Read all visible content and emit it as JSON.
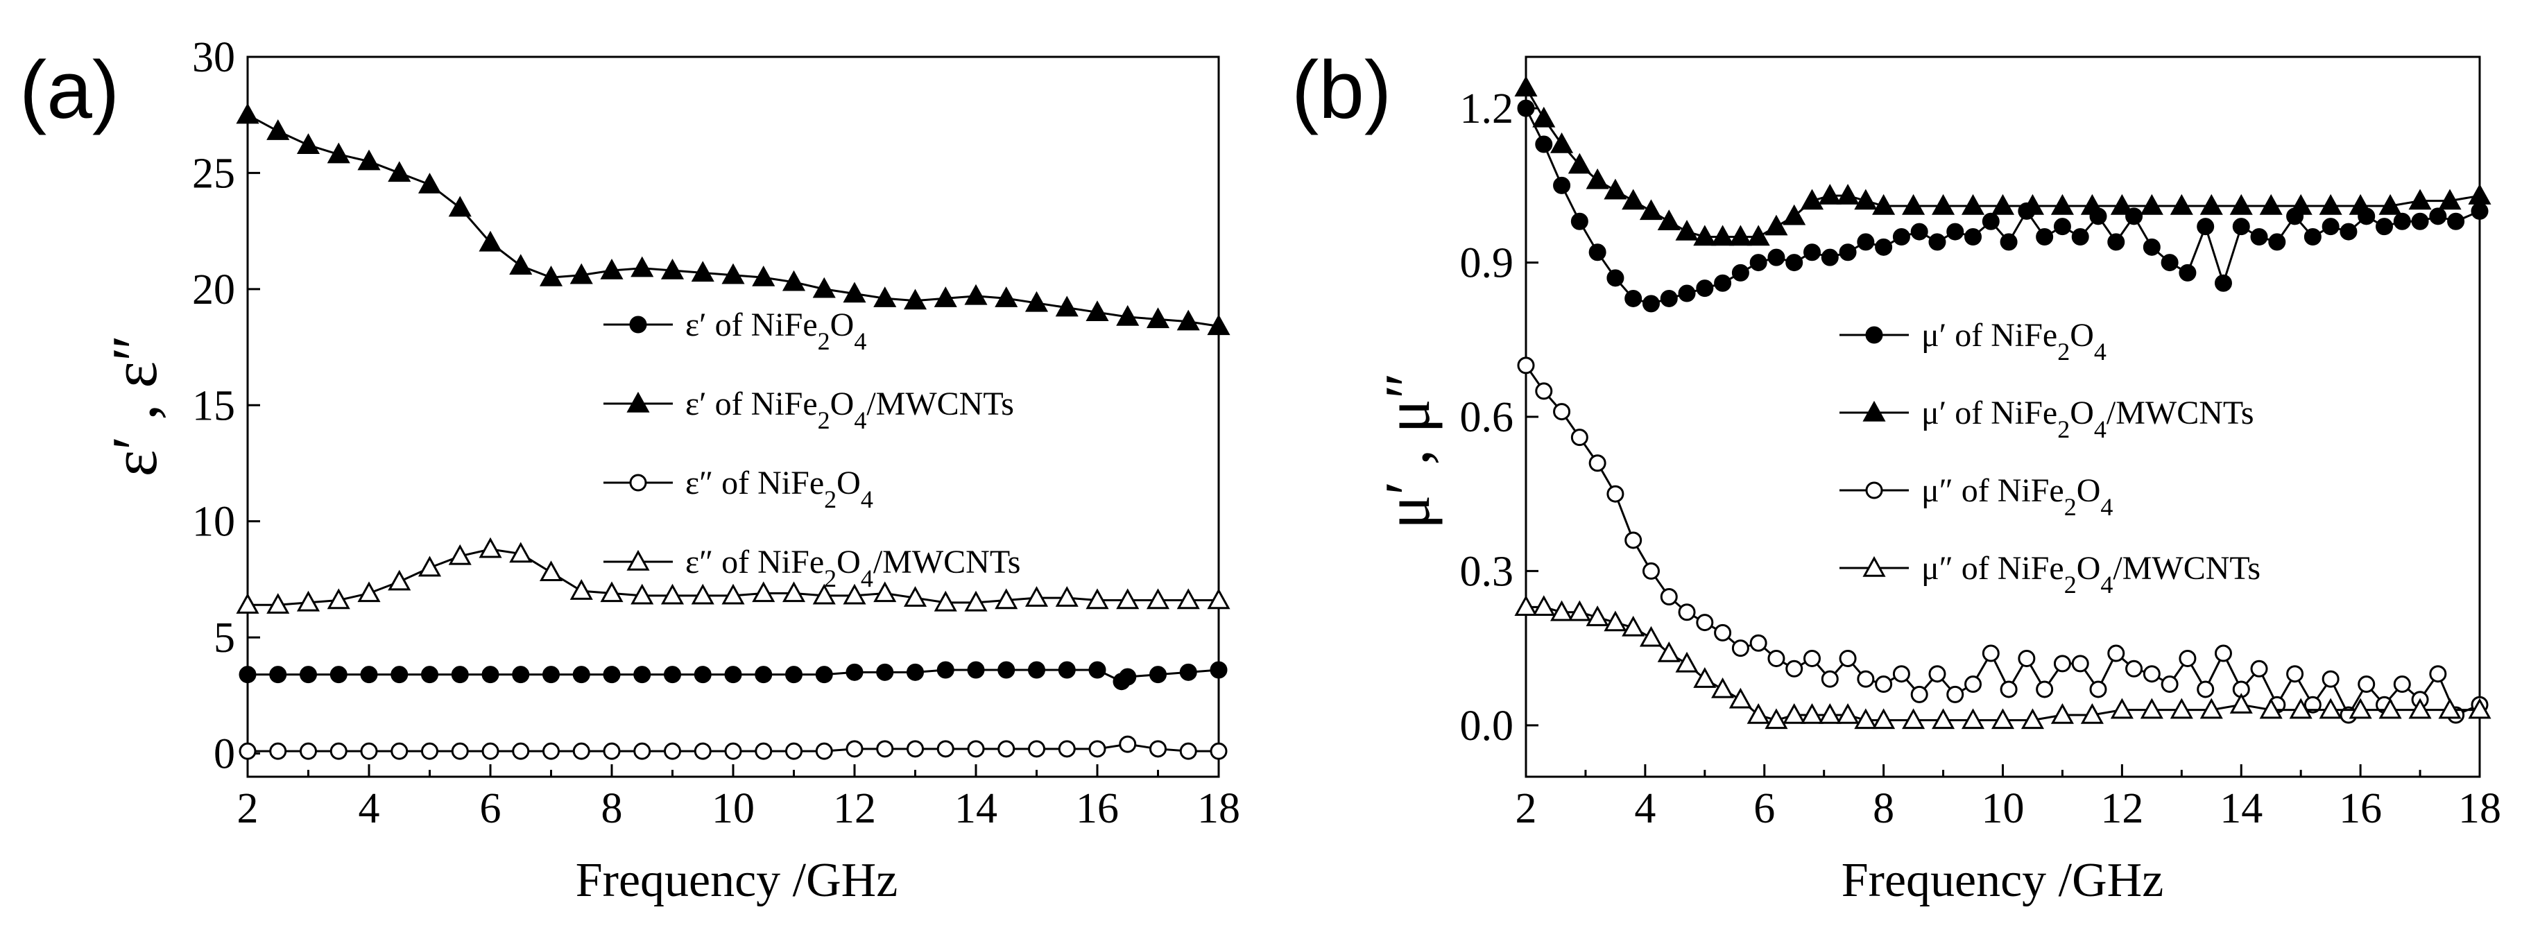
{
  "chart_data": [
    {
      "panel": "(a)",
      "type": "line",
      "xlabel": "Frequency /GHz",
      "ylabel": "ε′ , ε″",
      "xlim": [
        2,
        18
      ],
      "ylim": [
        -1,
        30
      ],
      "xticks": [
        2,
        4,
        6,
        8,
        10,
        12,
        14,
        16,
        18
      ],
      "yticks": [
        0,
        5,
        10,
        15,
        20,
        25,
        30
      ],
      "legend_position": "center",
      "series": [
        {
          "name": "ε′ of NiFe2O4",
          "legend_prefix": "ε′ of NiFe",
          "legend_sub1": "2",
          "legend_mid": "O",
          "legend_sub2": "4",
          "legend_suffix": "",
          "marker": "circle-filled",
          "x": [
            2,
            2.5,
            3,
            3.5,
            4,
            4.5,
            5,
            5.5,
            6,
            6.5,
            7,
            7.5,
            8,
            8.5,
            9,
            9.5,
            10,
            10.5,
            11,
            11.5,
            12,
            12.5,
            13,
            13.5,
            14,
            14.5,
            15,
            15.5,
            16,
            16.4,
            16.5,
            17,
            17.5,
            18
          ],
          "y": [
            3.4,
            3.4,
            3.4,
            3.4,
            3.4,
            3.4,
            3.4,
            3.4,
            3.4,
            3.4,
            3.4,
            3.4,
            3.4,
            3.4,
            3.4,
            3.4,
            3.4,
            3.4,
            3.4,
            3.4,
            3.5,
            3.5,
            3.5,
            3.6,
            3.6,
            3.6,
            3.6,
            3.6,
            3.6,
            3.1,
            3.3,
            3.4,
            3.5,
            3.6
          ]
        },
        {
          "name": "ε′ of NiFe2O4/MWCNTs",
          "legend_prefix": "ε′ of NiFe",
          "legend_sub1": "2",
          "legend_mid": "O",
          "legend_sub2": "4",
          "legend_suffix": "/MWCNTs",
          "marker": "triangle-filled",
          "x": [
            2,
            2.5,
            3,
            3.5,
            4,
            4.5,
            5,
            5.5,
            6,
            6.5,
            7,
            7.5,
            8,
            8.5,
            9,
            9.5,
            10,
            10.5,
            11,
            11.5,
            12,
            12.5,
            13,
            13.5,
            14,
            14.5,
            15,
            15.5,
            16,
            16.5,
            17,
            17.5,
            18
          ],
          "y": [
            27.5,
            26.8,
            26.2,
            25.8,
            25.5,
            25.0,
            24.5,
            23.5,
            22.0,
            21.0,
            20.5,
            20.6,
            20.8,
            20.9,
            20.8,
            20.7,
            20.6,
            20.5,
            20.3,
            20.0,
            19.8,
            19.6,
            19.5,
            19.6,
            19.7,
            19.6,
            19.4,
            19.2,
            19.0,
            18.8,
            18.7,
            18.6,
            18.4
          ]
        },
        {
          "name": "ε″ of NiFe2O4",
          "legend_prefix": "ε″ of NiFe",
          "legend_sub1": "2",
          "legend_mid": "O",
          "legend_sub2": "4",
          "legend_suffix": "",
          "marker": "circle-open",
          "x": [
            2,
            2.5,
            3,
            3.5,
            4,
            4.5,
            5,
            5.5,
            6,
            6.5,
            7,
            7.5,
            8,
            8.5,
            9,
            9.5,
            10,
            10.5,
            11,
            11.5,
            12,
            12.5,
            13,
            13.5,
            14,
            14.5,
            15,
            15.5,
            16,
            16.5,
            17,
            17.5,
            18
          ],
          "y": [
            0.1,
            0.1,
            0.1,
            0.1,
            0.1,
            0.1,
            0.1,
            0.1,
            0.1,
            0.1,
            0.1,
            0.1,
            0.1,
            0.1,
            0.1,
            0.1,
            0.1,
            0.1,
            0.1,
            0.1,
            0.2,
            0.2,
            0.2,
            0.2,
            0.2,
            0.2,
            0.2,
            0.2,
            0.2,
            0.4,
            0.2,
            0.1,
            0.1
          ]
        },
        {
          "name": "ε″ of NiFe2O4/MWCNTs",
          "legend_prefix": "ε″ of NiFe",
          "legend_sub1": "2",
          "legend_mid": "O",
          "legend_sub2": "4",
          "legend_suffix": "/MWCNTs",
          "marker": "triangle-open",
          "x": [
            2,
            2.5,
            3,
            3.5,
            4,
            4.5,
            5,
            5.5,
            6,
            6.5,
            7,
            7.5,
            8,
            8.5,
            9,
            9.5,
            10,
            10.5,
            11,
            11.5,
            12,
            12.5,
            13,
            13.5,
            14,
            14.5,
            15,
            15.5,
            16,
            16.5,
            17,
            17.5,
            18
          ],
          "y": [
            6.4,
            6.4,
            6.5,
            6.6,
            6.9,
            7.4,
            8.0,
            8.5,
            8.8,
            8.6,
            7.8,
            7.0,
            6.9,
            6.8,
            6.8,
            6.8,
            6.8,
            6.9,
            6.9,
            6.8,
            6.8,
            6.9,
            6.7,
            6.5,
            6.5,
            6.6,
            6.7,
            6.7,
            6.6,
            6.6,
            6.6,
            6.6,
            6.6
          ]
        }
      ]
    },
    {
      "panel": "(b)",
      "type": "line",
      "xlabel": "Frequency /GHz",
      "ylabel": "μ′ , μ″",
      "xlim": [
        2,
        18
      ],
      "ylim": [
        -0.1,
        1.3
      ],
      "xticks": [
        2,
        4,
        6,
        8,
        10,
        12,
        14,
        16,
        18
      ],
      "yticks": [
        0.0,
        0.3,
        0.6,
        0.9,
        1.2
      ],
      "ytick_labels": [
        "0.0",
        "0.3",
        "0.6",
        "0.9",
        "1.2"
      ],
      "legend_position": "center-right",
      "series": [
        {
          "name": "μ′ of NiFe2O4",
          "legend_prefix": "μ′ of NiFe",
          "legend_sub1": "2",
          "legend_mid": "O",
          "legend_sub2": "4",
          "legend_suffix": "",
          "marker": "circle-filled",
          "x": [
            2,
            2.3,
            2.6,
            2.9,
            3.2,
            3.5,
            3.8,
            4.1,
            4.4,
            4.7,
            5.0,
            5.3,
            5.6,
            5.9,
            6.2,
            6.5,
            6.8,
            7.1,
            7.4,
            7.7,
            8.0,
            8.3,
            8.6,
            8.9,
            9.2,
            9.5,
            9.8,
            10.1,
            10.4,
            10.7,
            11.0,
            11.3,
            11.6,
            11.9,
            12.2,
            12.5,
            12.8,
            13.1,
            13.4,
            13.7,
            14.0,
            14.3,
            14.6,
            14.9,
            15.2,
            15.5,
            15.8,
            16.1,
            16.4,
            16.7,
            17.0,
            17.3,
            17.6,
            18.0
          ],
          "y": [
            1.2,
            1.13,
            1.05,
            0.98,
            0.92,
            0.87,
            0.83,
            0.82,
            0.83,
            0.84,
            0.85,
            0.86,
            0.88,
            0.9,
            0.91,
            0.9,
            0.92,
            0.91,
            0.92,
            0.94,
            0.93,
            0.95,
            0.96,
            0.94,
            0.96,
            0.95,
            0.98,
            0.94,
            1.0,
            0.95,
            0.97,
            0.95,
            0.99,
            0.94,
            0.99,
            0.93,
            0.9,
            0.88,
            0.97,
            0.86,
            0.97,
            0.95,
            0.94,
            0.99,
            0.95,
            0.97,
            0.96,
            0.99,
            0.97,
            0.98,
            0.98,
            0.99,
            0.98,
            1.0
          ]
        },
        {
          "name": "μ′ of NiFe2O4/MWCNTs",
          "legend_prefix": "μ′ of NiFe",
          "legend_sub1": "2",
          "legend_mid": "O",
          "legend_sub2": "4",
          "legend_suffix": "/MWCNTs",
          "marker": "triangle-filled",
          "x": [
            2,
            2.3,
            2.6,
            2.9,
            3.2,
            3.5,
            3.8,
            4.1,
            4.4,
            4.7,
            5.0,
            5.3,
            5.6,
            5.9,
            6.2,
            6.5,
            6.8,
            7.1,
            7.4,
            7.7,
            8.0,
            8.5,
            9.0,
            9.5,
            10.0,
            10.5,
            11.0,
            11.5,
            12.0,
            12.5,
            13.0,
            13.5,
            14.0,
            14.5,
            15.0,
            15.5,
            16.0,
            16.5,
            17.0,
            17.5,
            18.0
          ],
          "y": [
            1.24,
            1.18,
            1.13,
            1.09,
            1.06,
            1.04,
            1.02,
            1.0,
            0.98,
            0.96,
            0.95,
            0.95,
            0.95,
            0.95,
            0.97,
            0.99,
            1.02,
            1.03,
            1.03,
            1.02,
            1.01,
            1.01,
            1.01,
            1.01,
            1.01,
            1.01,
            1.01,
            1.01,
            1.01,
            1.01,
            1.01,
            1.01,
            1.01,
            1.01,
            1.01,
            1.01,
            1.01,
            1.01,
            1.02,
            1.02,
            1.03
          ]
        },
        {
          "name": "μ″ of NiFe2O4",
          "legend_prefix": "μ″ of NiFe",
          "legend_sub1": "2",
          "legend_mid": "O",
          "legend_sub2": "4",
          "legend_suffix": "",
          "marker": "circle-open",
          "x": [
            2,
            2.3,
            2.6,
            2.9,
            3.2,
            3.5,
            3.8,
            4.1,
            4.4,
            4.7,
            5.0,
            5.3,
            5.6,
            5.9,
            6.2,
            6.5,
            6.8,
            7.1,
            7.4,
            7.7,
            8.0,
            8.3,
            8.6,
            8.9,
            9.2,
            9.5,
            9.8,
            10.1,
            10.4,
            10.7,
            11.0,
            11.3,
            11.6,
            11.9,
            12.2,
            12.5,
            12.8,
            13.1,
            13.4,
            13.7,
            14.0,
            14.3,
            14.6,
            14.9,
            15.2,
            15.5,
            15.8,
            16.1,
            16.4,
            16.7,
            17.0,
            17.3,
            17.6,
            18.0
          ],
          "y": [
            0.7,
            0.65,
            0.61,
            0.56,
            0.51,
            0.45,
            0.36,
            0.3,
            0.25,
            0.22,
            0.2,
            0.18,
            0.15,
            0.16,
            0.13,
            0.11,
            0.13,
            0.09,
            0.13,
            0.09,
            0.08,
            0.1,
            0.06,
            0.1,
            0.06,
            0.08,
            0.14,
            0.07,
            0.13,
            0.07,
            0.12,
            0.12,
            0.07,
            0.14,
            0.11,
            0.1,
            0.08,
            0.13,
            0.07,
            0.14,
            0.07,
            0.11,
            0.04,
            0.1,
            0.04,
            0.09,
            0.02,
            0.08,
            0.04,
            0.08,
            0.05,
            0.1,
            0.02,
            0.04
          ]
        },
        {
          "name": "μ″ of NiFe2O4/MWCNTs",
          "legend_prefix": "μ″ of NiFe",
          "legend_sub1": "2",
          "legend_mid": "O",
          "legend_sub2": "4",
          "legend_suffix": "/MWCNTs",
          "marker": "triangle-open",
          "x": [
            2,
            2.3,
            2.6,
            2.9,
            3.2,
            3.5,
            3.8,
            4.1,
            4.4,
            4.7,
            5.0,
            5.3,
            5.6,
            5.9,
            6.2,
            6.5,
            6.8,
            7.1,
            7.4,
            7.7,
            8.0,
            8.5,
            9.0,
            9.5,
            10.0,
            10.5,
            11.0,
            11.5,
            12.0,
            12.5,
            13.0,
            13.5,
            14.0,
            14.5,
            15.0,
            15.5,
            16.0,
            16.5,
            17.0,
            17.5,
            18.0
          ],
          "y": [
            0.23,
            0.23,
            0.22,
            0.22,
            0.21,
            0.2,
            0.19,
            0.17,
            0.14,
            0.12,
            0.09,
            0.07,
            0.05,
            0.02,
            0.01,
            0.02,
            0.02,
            0.02,
            0.02,
            0.01,
            0.01,
            0.01,
            0.01,
            0.01,
            0.01,
            0.01,
            0.02,
            0.02,
            0.03,
            0.03,
            0.03,
            0.03,
            0.04,
            0.03,
            0.03,
            0.03,
            0.03,
            0.03,
            0.03,
            0.03,
            0.03
          ]
        }
      ]
    }
  ]
}
